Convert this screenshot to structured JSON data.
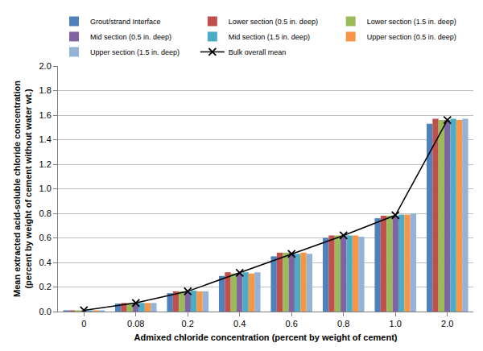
{
  "chart_data": {
    "type": "bar",
    "x_label": "Admixed chloride concentration (percent by weight of cement)",
    "y_label": "Mean extracted acid-soluble chloride concentration\n(percent by weight of cement without water wt.)",
    "categories": [
      "0",
      "0.08",
      "0.2",
      "0.4",
      "0.6",
      "0.8",
      "1.0",
      "2.0"
    ],
    "series": [
      {
        "name": "Grout/strand Interface",
        "type": "bar",
        "color": "#4F81BD",
        "values": [
          0.01,
          0.065,
          0.15,
          0.29,
          0.45,
          0.6,
          0.76,
          1.53
        ]
      },
      {
        "name": "Lower section (0.5 in. deep)",
        "type": "bar",
        "color": "#C0504D",
        "values": [
          0.01,
          0.07,
          0.165,
          0.32,
          0.48,
          0.62,
          0.78,
          1.57
        ]
      },
      {
        "name": "Lower section (1.5 in. deep)",
        "type": "bar",
        "color": "#9BBB59",
        "values": [
          0.01,
          0.07,
          0.165,
          0.31,
          0.48,
          0.62,
          0.78,
          1.56
        ]
      },
      {
        "name": "Mid section (0.5 in. deep)",
        "type": "bar",
        "color": "#8064A2",
        "values": [
          0.01,
          0.07,
          0.16,
          0.31,
          0.48,
          0.62,
          0.78,
          1.56
        ]
      },
      {
        "name": "Mid section (1.5 in. deep)",
        "type": "bar",
        "color": "#4BACC6",
        "values": [
          0.01,
          0.07,
          0.17,
          0.32,
          0.47,
          0.62,
          0.79,
          1.57
        ]
      },
      {
        "name": "Upper section (0.5 in. deep)",
        "type": "bar",
        "color": "#F79646",
        "values": [
          0.01,
          0.07,
          0.165,
          0.31,
          0.48,
          0.62,
          0.79,
          1.56
        ]
      },
      {
        "name": "Upper section (1.5 in. deep)",
        "type": "bar",
        "color": "#95B3D7",
        "values": [
          0.01,
          0.07,
          0.165,
          0.32,
          0.47,
          0.61,
          0.8,
          1.57
        ]
      },
      {
        "name": "Bulk overall mean",
        "type": "line",
        "color": "#000000",
        "marker": "x",
        "line_style": "solid",
        "values": [
          0.01,
          0.07,
          0.165,
          0.315,
          0.47,
          0.62,
          0.785,
          1.56
        ]
      }
    ],
    "ylim": [
      0,
      2.0
    ],
    "yticks": [
      {
        "value": 0,
        "label": "0.0"
      },
      0.2,
      0.4,
      0.6,
      0.8,
      {
        "value": 1,
        "label": "1.0"
      },
      1.2,
      1.4,
      1.6,
      1.8,
      {
        "value": 2,
        "label": "2.0"
      }
    ],
    "grid": true,
    "legend": "top"
  }
}
